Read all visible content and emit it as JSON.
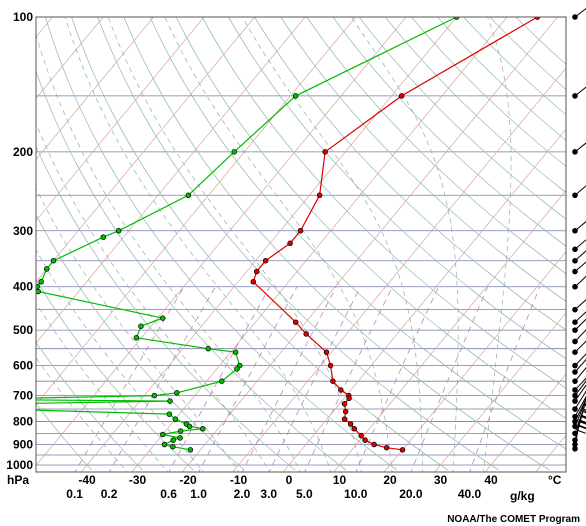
{
  "chart_data": {
    "type": "line",
    "title": "",
    "credit": "NOAA/The COMET Program",
    "x_axis": {
      "label": "°C",
      "range": [
        -45,
        55
      ],
      "ticks": [
        -40,
        -30,
        -20,
        -10,
        0,
        10,
        20,
        30,
        40
      ]
    },
    "y_axis": {
      "label": "hPa",
      "scale": "log",
      "range": [
        1050,
        100
      ],
      "ticks": [
        100,
        200,
        300,
        400,
        500,
        600,
        700,
        800,
        900,
        1000
      ]
    },
    "mixing_ratio_axis": {
      "label": "g/kg",
      "ticks": [
        "0.1",
        "0.2",
        "0.6",
        "1.0",
        "2.0",
        "3.0",
        "5.0",
        "10.0",
        "20.0",
        "40.0"
      ]
    },
    "isobars": [
      150,
      200,
      250,
      300,
      350,
      400,
      450,
      500,
      550,
      600,
      650,
      700,
      750,
      800,
      850,
      900,
      950,
      1000
    ],
    "series": [
      {
        "role": "temperature",
        "color": "#dd0000",
        "points": [
          [
            100,
            -24
          ],
          [
            150,
            -38
          ],
          [
            200,
            -44
          ],
          [
            250,
            -38
          ],
          [
            300,
            -36
          ],
          [
            320,
            -36
          ],
          [
            350,
            -38
          ],
          [
            370,
            -38
          ],
          [
            390,
            -37
          ],
          [
            480,
            -22
          ],
          [
            510,
            -18
          ],
          [
            560,
            -11
          ],
          [
            600,
            -8
          ],
          [
            650,
            -5
          ],
          [
            680,
            -2
          ],
          [
            700,
            0.5
          ],
          [
            710,
            1
          ],
          [
            730,
            1
          ],
          [
            760,
            2.5
          ],
          [
            790,
            3.5
          ],
          [
            810,
            5.5
          ],
          [
            830,
            7
          ],
          [
            860,
            9.5
          ],
          [
            880,
            11
          ],
          [
            900,
            13.5
          ],
          [
            915,
            16.5
          ],
          [
            925,
            20
          ]
        ]
      },
      {
        "role": "dewpoint",
        "color": "#00bb00",
        "points": [
          [
            100,
            -40
          ],
          [
            150,
            -59
          ],
          [
            200,
            -62
          ],
          [
            250,
            -64
          ],
          [
            300,
            -72
          ],
          [
            310,
            -74
          ],
          [
            350,
            -80
          ],
          [
            365,
            -80
          ],
          [
            390,
            -79
          ],
          [
            400,
            -79
          ],
          [
            410,
            -78
          ],
          [
            470,
            -49
          ],
          [
            490,
            -52
          ],
          [
            520,
            -51
          ],
          [
            550,
            -35
          ],
          [
            560,
            -29
          ],
          [
            600,
            -26
          ],
          [
            610,
            -26
          ],
          [
            650,
            -27
          ],
          [
            690,
            -34
          ],
          [
            700,
            -38
          ],
          [
            710,
            -65
          ],
          [
            715,
            -66
          ],
          [
            720,
            -34
          ],
          [
            730,
            -66
          ],
          [
            750,
            -67
          ],
          [
            770,
            -32
          ],
          [
            790,
            -30
          ],
          [
            810,
            -27
          ],
          [
            820,
            -26
          ],
          [
            830,
            -23
          ],
          [
            840,
            -27
          ],
          [
            855,
            -30
          ],
          [
            870,
            -26
          ],
          [
            880,
            -27
          ],
          [
            900,
            -28
          ],
          [
            910,
            -26
          ],
          [
            925,
            -22
          ]
        ]
      }
    ],
    "wind_barbs": [
      {
        "p": 100,
        "dir": 300
      },
      {
        "p": 150,
        "dir": 285
      },
      {
        "p": 200,
        "dir": 280
      },
      {
        "p": 250,
        "dir": 270
      },
      {
        "p": 300,
        "dir": 275
      },
      {
        "p": 330,
        "dir": 270
      },
      {
        "p": 350,
        "dir": 265
      },
      {
        "p": 370,
        "dir": 270
      },
      {
        "p": 400,
        "dir": 260
      },
      {
        "p": 450,
        "dir": 265
      },
      {
        "p": 480,
        "dir": 260
      },
      {
        "p": 500,
        "dir": 255
      },
      {
        "p": 530,
        "dir": 250
      },
      {
        "p": 560,
        "dir": 255
      },
      {
        "p": 600,
        "dir": 250
      },
      {
        "p": 620,
        "dir": 245
      },
      {
        "p": 650,
        "dir": 240
      },
      {
        "p": 680,
        "dir": 250
      },
      {
        "p": 700,
        "dir": 235
      },
      {
        "p": 720,
        "dir": 230
      },
      {
        "p": 750,
        "dir": 225
      },
      {
        "p": 780,
        "dir": 220
      },
      {
        "p": 800,
        "dir": 215
      },
      {
        "p": 820,
        "dir": 210
      },
      {
        "p": 850,
        "dir": 205
      },
      {
        "p": 880,
        "dir": 200
      },
      {
        "p": 900,
        "dir": 195
      },
      {
        "p": 920,
        "dir": 190
      }
    ]
  }
}
